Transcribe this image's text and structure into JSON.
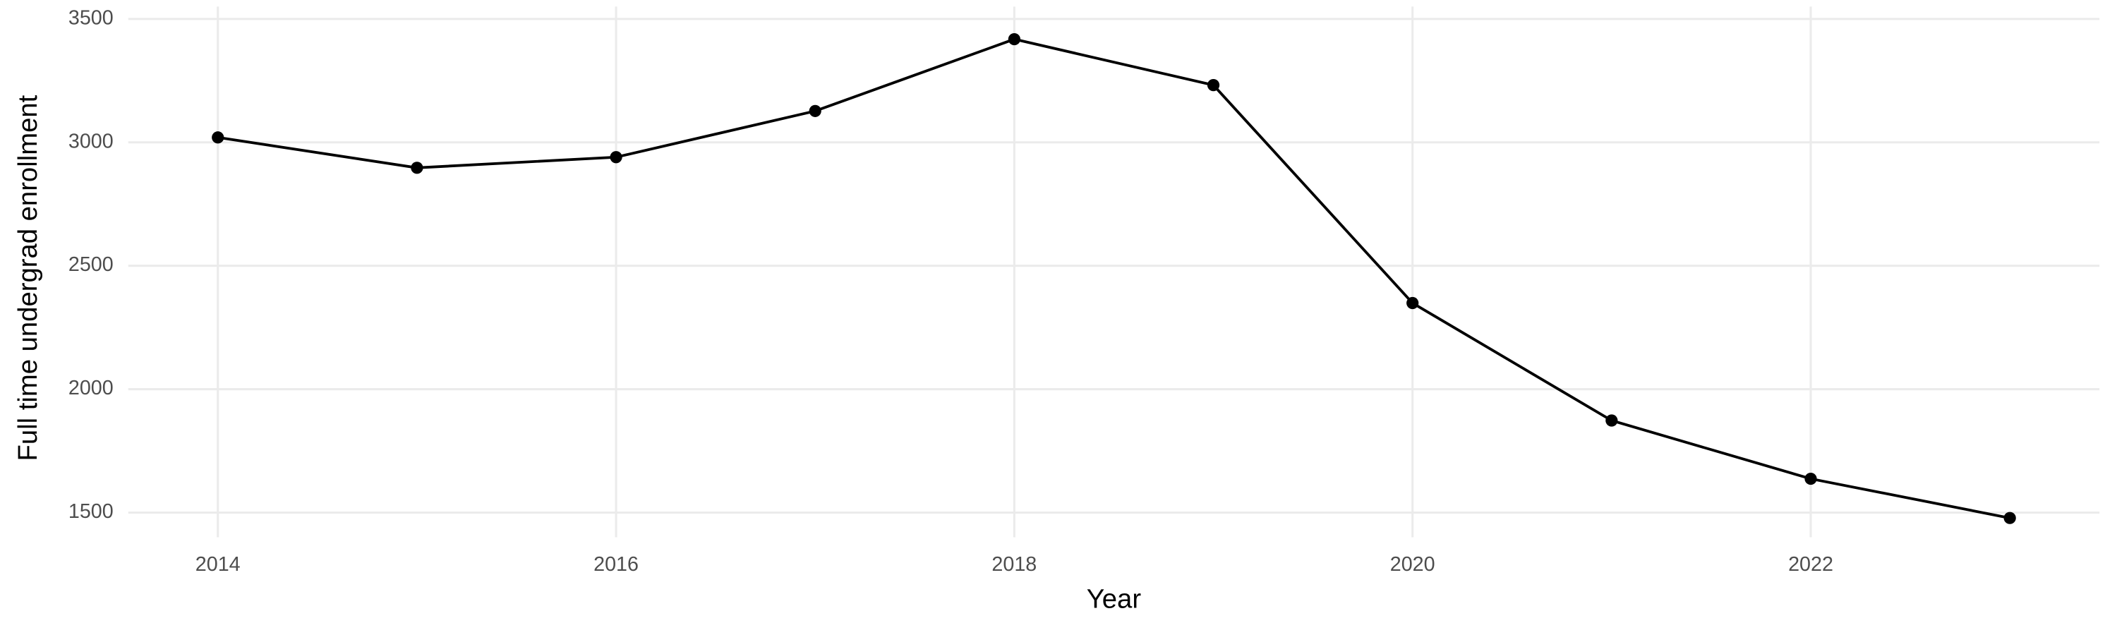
{
  "chart_data": {
    "type": "line",
    "x_label": "Year",
    "y_label": "Full time undergrad enrollment",
    "x": [
      2014,
      2015,
      2016,
      2017,
      2018,
      2019,
      2020,
      2021,
      2022,
      2023
    ],
    "values": [
      3020,
      2897,
      2940,
      3127,
      3418,
      3232,
      2349,
      1873,
      1637,
      1478
    ],
    "color": "#000000",
    "xlim": [
      2013.55,
      2023.45
    ],
    "xticks": [
      2014,
      2016,
      2018,
      2020,
      2022
    ],
    "ylim": [
      1400,
      3550
    ],
    "yticks": [
      1500,
      2000,
      2500,
      3000,
      3500
    ],
    "grid": true
  }
}
